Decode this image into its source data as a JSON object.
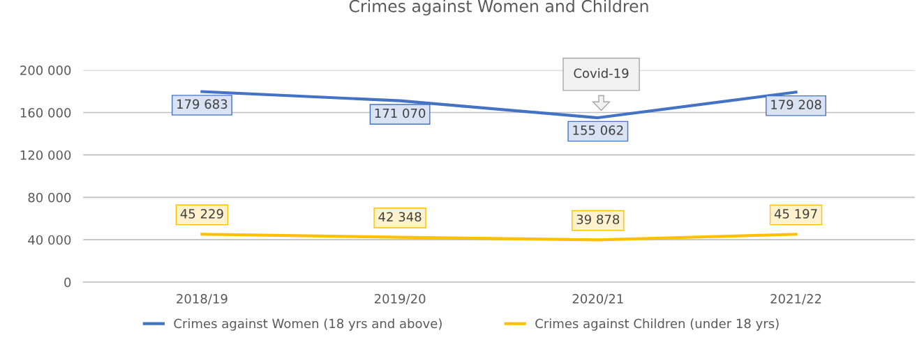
{
  "chart_data": {
    "type": "line",
    "title": "Crimes against Women and Children",
    "categories": [
      "2018/19",
      "2019/20",
      "2020/21",
      "2021/22"
    ],
    "series": [
      {
        "name": "Crimes against Women (18 yrs and above)",
        "color": "#4472c4",
        "values": [
          179683,
          171070,
          155062,
          179208
        ],
        "value_labels": [
          "179 683",
          "171 070",
          "155 062",
          "179 208"
        ]
      },
      {
        "name": "Crimes against Children (under 18 yrs)",
        "color": "#ffc000",
        "values": [
          45229,
          42348,
          39878,
          45197
        ],
        "value_labels": [
          "45 229",
          "42 348",
          "39 878",
          "45 197"
        ]
      }
    ],
    "ylim": [
      0,
      200000
    ],
    "yticks": [
      {
        "value": 0,
        "label": "0"
      },
      {
        "value": 40000,
        "label": "40 000"
      },
      {
        "value": 80000,
        "label": "80 000"
      },
      {
        "value": 120000,
        "label": "120 000"
      },
      {
        "value": 160000,
        "label": "160 000"
      },
      {
        "value": 200000,
        "label": "200 000"
      }
    ],
    "annotations": [
      "Covid-19"
    ],
    "grid": "y",
    "legend": "bottom",
    "marker": "none",
    "line_style": "solid"
  }
}
